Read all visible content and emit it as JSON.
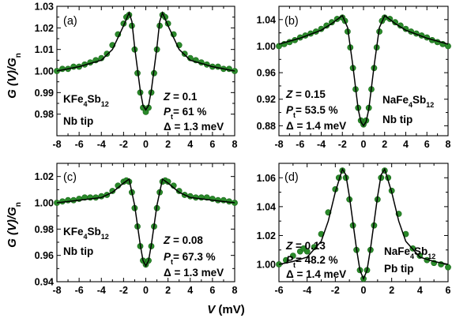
{
  "chart_data": [
    {
      "type": "scatter",
      "panel": "(a)",
      "xlim": [
        -8,
        8
      ],
      "ylim": [
        0.97,
        1.03
      ],
      "x_ticks": [
        -8,
        -6,
        -4,
        -2,
        0,
        2,
        4,
        6,
        8
      ],
      "y_ticks": [
        0.98,
        0.99,
        1.0,
        1.01,
        1.02,
        1.03
      ],
      "y_tick_labels": [
        "0.98",
        "0.99",
        "1.00",
        "1.01",
        "1.02",
        "1.03"
      ],
      "annotations": {
        "material_pre": "KFe",
        "material_sub1": "4",
        "material_mid": "Sb",
        "material_sub2": "12",
        "tip": "Nb tip",
        "z": "= 0.1",
        "p": "= 61 %",
        "delta": "= 1.3 meV"
      },
      "params": {
        "Z": 0.1,
        "P_t": 61,
        "Delta_meV": 1.3
      },
      "series": [
        {
          "kind": "points",
          "x": [
            -8.0,
            -7.5,
            -7.0,
            -6.5,
            -6.0,
            -5.5,
            -5.0,
            -4.5,
            -4.0,
            -3.5,
            -3.0,
            -2.5,
            -2.0,
            -1.75,
            -1.5,
            -1.25,
            -1.0,
            -0.75,
            -0.5,
            -0.25,
            0.0,
            0.25,
            0.5,
            0.75,
            1.0,
            1.25,
            1.5,
            1.75,
            2.0,
            2.5,
            3.0,
            3.5,
            4.0,
            4.5,
            5.0,
            5.5,
            6.0,
            6.5,
            7.0,
            7.5,
            8.0
          ],
          "y": [
            1.0,
            1.001,
            1.001,
            1.002,
            1.002,
            1.003,
            1.004,
            1.005,
            1.006,
            1.008,
            1.012,
            1.017,
            1.022,
            1.025,
            1.026,
            1.021,
            1.01,
            0.999,
            0.99,
            0.983,
            0.981,
            0.983,
            0.99,
            0.999,
            1.01,
            1.021,
            1.026,
            1.025,
            1.022,
            1.017,
            1.012,
            1.008,
            1.006,
            1.005,
            1.004,
            1.003,
            1.002,
            1.002,
            1.001,
            1.001,
            1.0
          ]
        },
        {
          "kind": "fit",
          "x": [
            -8.0,
            -6.0,
            -4.0,
            -3.0,
            -2.0,
            -1.5,
            -1.25,
            -1.0,
            -0.5,
            -0.25,
            0.0,
            0.25,
            0.5,
            1.0,
            1.25,
            1.5,
            2.0,
            3.0,
            4.0,
            6.0,
            8.0
          ],
          "y": [
            1.0,
            1.002,
            1.005,
            1.01,
            1.021,
            1.027,
            1.023,
            1.011,
            0.991,
            0.984,
            0.982,
            0.984,
            0.991,
            1.011,
            1.023,
            1.027,
            1.021,
            1.01,
            1.005,
            1.002,
            1.0
          ]
        }
      ]
    },
    {
      "type": "scatter",
      "panel": "(b)",
      "xlim": [
        -8,
        8
      ],
      "ylim": [
        0.865,
        1.06
      ],
      "x_ticks": [
        -8,
        -6,
        -4,
        -2,
        0,
        2,
        4,
        6,
        8
      ],
      "y_ticks": [
        0.88,
        0.92,
        0.96,
        1.0,
        1.04
      ],
      "y_tick_labels": [
        "0.88",
        "0.92",
        "0.96",
        "1.00",
        "1.04"
      ],
      "annotations": {
        "material_pre": "NaFe",
        "material_sub1": "4",
        "material_mid": "Sb",
        "material_sub2": "12",
        "tip": "Nb tip",
        "z": "= 0.15",
        "p": "= 53.5 %",
        "delta": "= 1.4 meV"
      },
      "params": {
        "Z": 0.15,
        "P_t": 53.5,
        "Delta_meV": 1.4
      },
      "series": [
        {
          "kind": "points",
          "x": [
            -8.0,
            -7.5,
            -7.0,
            -6.5,
            -6.0,
            -5.5,
            -5.0,
            -4.5,
            -4.0,
            -3.5,
            -3.0,
            -2.5,
            -2.0,
            -1.75,
            -1.5,
            -1.25,
            -1.0,
            -0.75,
            -0.5,
            -0.25,
            0.0,
            0.25,
            0.5,
            0.75,
            1.0,
            1.25,
            1.5,
            1.75,
            2.0,
            2.5,
            3.0,
            3.5,
            4.0,
            4.5,
            5.0,
            5.5,
            6.0,
            6.5,
            7.0,
            7.5,
            8.0
          ],
          "y": [
            1.0,
            1.003,
            1.006,
            1.009,
            1.013,
            1.016,
            1.019,
            1.022,
            1.026,
            1.031,
            1.036,
            1.041,
            1.043,
            1.038,
            1.022,
            0.998,
            0.967,
            0.935,
            0.907,
            0.888,
            0.882,
            0.888,
            0.907,
            0.935,
            0.967,
            0.998,
            1.022,
            1.038,
            1.043,
            1.041,
            1.036,
            1.031,
            1.026,
            1.022,
            1.019,
            1.016,
            1.013,
            1.009,
            1.006,
            1.003,
            1.0
          ]
        },
        {
          "kind": "fit",
          "x": [
            -8.0,
            -6.0,
            -4.0,
            -3.0,
            -2.0,
            -1.5,
            -1.0,
            -0.5,
            -0.25,
            0.0,
            0.25,
            0.5,
            1.0,
            1.5,
            2.0,
            3.0,
            4.0,
            6.0,
            8.0
          ],
          "y": [
            1.003,
            1.012,
            1.024,
            1.034,
            1.046,
            1.028,
            0.97,
            0.905,
            0.886,
            0.88,
            0.886,
            0.905,
            0.97,
            1.028,
            1.046,
            1.034,
            1.024,
            1.012,
            1.003
          ]
        }
      ]
    },
    {
      "type": "scatter",
      "panel": "(c)",
      "xlim": [
        -8,
        8
      ],
      "ylim": [
        0.94,
        1.03
      ],
      "x_ticks": [
        -8,
        -6,
        -4,
        -2,
        0,
        2,
        4,
        6,
        8
      ],
      "y_ticks": [
        0.94,
        0.96,
        0.98,
        1.0,
        1.02
      ],
      "y_tick_labels": [
        "0.94",
        "0.96",
        "0.98",
        "1.00",
        "1.02"
      ],
      "annotations": {
        "material_pre": "KFe",
        "material_sub1": "4",
        "material_mid": "Sb",
        "material_sub2": "12",
        "tip": "Nb tip",
        "z": "= 0.08",
        "p": "= 67.3 %",
        "delta": "= 1.3 meV"
      },
      "params": {
        "Z": 0.08,
        "P_t": 67.3,
        "Delta_meV": 1.3
      },
      "series": [
        {
          "kind": "points",
          "x": [
            -8.0,
            -7.5,
            -7.0,
            -6.5,
            -6.0,
            -5.5,
            -5.0,
            -4.5,
            -4.0,
            -3.5,
            -3.0,
            -2.5,
            -2.0,
            -1.75,
            -1.5,
            -1.25,
            -1.0,
            -0.75,
            -0.5,
            -0.25,
            0.0,
            0.25,
            0.5,
            0.75,
            1.0,
            1.25,
            1.5,
            1.75,
            2.0,
            2.5,
            3.0,
            3.5,
            4.0,
            4.5,
            5.0,
            5.5,
            6.0,
            6.5,
            7.0,
            7.5,
            8.0
          ],
          "y": [
            1.0,
            1.001,
            1.002,
            1.002,
            1.003,
            1.004,
            1.004,
            1.004,
            1.005,
            1.006,
            1.009,
            1.013,
            1.016,
            1.017,
            1.016,
            1.008,
            0.996,
            0.982,
            0.967,
            0.956,
            0.953,
            0.956,
            0.967,
            0.982,
            0.996,
            1.008,
            1.016,
            1.017,
            1.016,
            1.013,
            1.009,
            1.006,
            1.005,
            1.004,
            1.004,
            1.004,
            1.003,
            1.002,
            1.002,
            1.001,
            1.0
          ]
        },
        {
          "kind": "fit",
          "x": [
            -8.0,
            -6.0,
            -4.0,
            -3.0,
            -2.0,
            -1.5,
            -1.0,
            -0.5,
            -0.25,
            0.0,
            0.25,
            0.5,
            1.0,
            1.5,
            2.0,
            3.0,
            4.0,
            6.0,
            8.0
          ],
          "y": [
            1.0,
            1.002,
            1.004,
            1.008,
            1.015,
            1.018,
            0.998,
            0.968,
            0.956,
            0.952,
            0.956,
            0.968,
            0.998,
            1.018,
            1.015,
            1.008,
            1.004,
            1.002,
            1.0
          ]
        }
      ]
    },
    {
      "type": "scatter",
      "panel": "(d)",
      "xlim": [
        -6,
        6
      ],
      "ylim": [
        0.988,
        1.07
      ],
      "x_ticks": [
        -6,
        -4,
        -2,
        0,
        2,
        4,
        6
      ],
      "y_ticks": [
        1.0,
        1.02,
        1.04,
        1.06
      ],
      "y_tick_labels": [
        "1.00",
        "1.02",
        "1.04",
        "1.06"
      ],
      "annotations": {
        "material_pre": "NaFe",
        "material_sub1": "4",
        "material_mid": "Sb",
        "material_sub2": "12",
        "tip": "Pb tip",
        "z": "= 0.13",
        "p": "= 48.2 %",
        "delta": "= 1.4 meV"
      },
      "params": {
        "Z": 0.13,
        "P_t": 48.2,
        "Delta_meV": 1.4
      },
      "series": [
        {
          "kind": "points",
          "x": [
            -6.0,
            -5.5,
            -5.0,
            -4.5,
            -4.25,
            -4.0,
            -3.5,
            -3.0,
            -2.5,
            -2.0,
            -1.75,
            -1.5,
            -1.25,
            -1.0,
            -0.75,
            -0.5,
            -0.25,
            0.0,
            0.25,
            0.5,
            0.75,
            1.0,
            1.25,
            1.5,
            1.75,
            2.0,
            2.5,
            3.0,
            3.5,
            4.0,
            4.5,
            5.0,
            5.5,
            6.0
          ],
          "y": [
            1.0,
            1.003,
            1.006,
            1.009,
            1.011,
            1.009,
            1.012,
            1.021,
            1.036,
            1.052,
            1.06,
            1.065,
            1.06,
            1.045,
            1.027,
            1.01,
            0.996,
            0.99,
            0.996,
            1.01,
            1.027,
            1.045,
            1.06,
            1.065,
            1.06,
            1.051,
            1.035,
            1.021,
            1.011,
            1.006,
            1.003,
            1.001,
            1.0,
            0.998
          ]
        },
        {
          "kind": "fit",
          "x": [
            -6.0,
            -5.0,
            -4.0,
            -3.0,
            -2.5,
            -2.0,
            -1.5,
            -1.25,
            -1.0,
            -0.5,
            -0.25,
            0.0,
            0.25,
            0.5,
            1.0,
            1.25,
            1.5,
            2.0,
            2.5,
            3.0,
            4.0,
            5.0,
            6.0
          ],
          "y": [
            1.0,
            1.002,
            1.005,
            1.016,
            1.03,
            1.05,
            1.066,
            1.062,
            1.047,
            1.011,
            0.996,
            0.99,
            0.996,
            1.011,
            1.047,
            1.062,
            1.066,
            1.05,
            1.03,
            1.016,
            1.005,
            1.002,
            1.0
          ]
        }
      ]
    }
  ],
  "axes": {
    "ylabel_pre": "G (V)/G",
    "ylabel_sub": "n",
    "xlabel_pre": "V",
    "xlabel_post": " (mV)"
  },
  "symbols": {
    "z": "Z",
    "p": "P",
    "p_sub": "t",
    "delta": "Δ"
  }
}
